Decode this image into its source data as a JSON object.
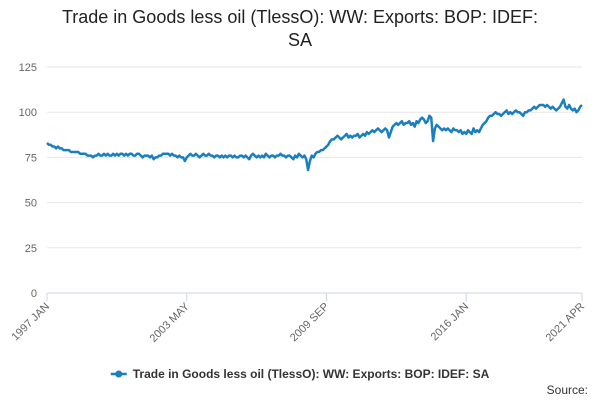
{
  "chart_data": {
    "type": "line",
    "title": "Trade in Goods less oil (TlessO): WW: Exports: BOP: IDEF: SA",
    "source_label": "Source:",
    "categories": [
      "1997 JAN",
      null,
      null,
      null,
      null,
      null,
      null,
      null,
      null,
      null,
      null,
      null,
      null,
      null,
      null,
      null,
      null,
      null,
      null,
      null,
      null,
      null,
      null,
      null,
      null,
      null,
      null,
      null,
      null,
      null,
      null,
      null,
      null,
      null,
      null,
      null,
      null,
      null,
      null,
      null,
      null,
      null,
      null,
      null,
      null,
      null,
      null,
      null,
      null,
      null,
      null,
      null,
      null,
      null,
      null,
      null,
      null,
      null,
      null,
      null,
      null,
      null,
      null,
      null,
      null,
      null,
      null,
      null,
      null,
      null,
      null,
      null,
      null,
      null,
      null,
      null,
      "2003 MAY",
      null,
      null,
      null,
      null,
      null,
      null,
      null,
      null,
      null,
      null,
      null,
      null,
      null,
      null,
      null,
      null,
      null,
      null,
      null,
      null,
      null,
      null,
      null,
      null,
      null,
      null,
      null,
      null,
      null,
      null,
      null,
      null,
      null,
      null,
      null,
      null,
      null,
      null,
      null,
      null,
      null,
      null,
      null,
      null,
      null,
      null,
      null,
      null,
      null,
      null,
      null,
      null,
      null,
      null,
      null,
      null,
      null,
      null,
      null,
      null,
      null,
      null,
      null,
      null,
      null,
      null,
      null,
      null,
      null,
      null,
      null,
      null,
      null,
      null,
      null,
      "2009 SEP",
      null,
      null,
      null,
      null,
      null,
      null,
      null,
      null,
      null,
      null,
      null,
      null,
      null,
      null,
      null,
      null,
      null,
      null,
      null,
      null,
      null,
      null,
      null,
      null,
      null,
      null,
      null,
      null,
      null,
      null,
      null,
      null,
      null,
      null,
      null,
      null,
      null,
      null,
      null,
      null,
      null,
      null,
      null,
      null,
      null,
      null,
      null,
      null,
      null,
      null,
      null,
      null,
      null,
      null,
      null,
      null,
      null,
      null,
      null,
      null,
      null,
      null,
      null,
      null,
      null,
      null,
      null,
      null,
      null,
      null,
      null,
      null,
      null,
      null,
      null,
      "2016 JAN",
      null,
      null,
      null,
      null,
      null,
      null,
      null,
      null,
      null,
      null,
      null,
      null,
      null,
      null,
      null,
      null,
      null,
      null,
      null,
      null,
      null,
      null,
      null,
      null,
      null,
      null,
      null,
      null,
      null,
      null,
      null,
      null,
      null,
      null,
      null,
      null,
      null,
      null,
      null,
      null,
      null,
      null,
      null,
      null,
      null,
      null,
      null,
      null,
      null,
      null,
      null,
      null,
      null,
      null,
      null,
      null,
      null,
      null,
      null,
      null,
      null,
      null,
      "2021 APR"
    ],
    "series": [
      {
        "name": "Trade in Goods less oil (TlessO): WW: Exports: BOP: IDEF: SA",
        "color": "#1a7fc1",
        "values": [
          83,
          82,
          82,
          81,
          81,
          80,
          81,
          80,
          80,
          79,
          79,
          79,
          79,
          78,
          78,
          78,
          78,
          78,
          77,
          77,
          77,
          77,
          76,
          76,
          76,
          75,
          76,
          76,
          77,
          76,
          76,
          77,
          76,
          77,
          76,
          76,
          77,
          76,
          77,
          76,
          77,
          77,
          76,
          77,
          76,
          77,
          77,
          76,
          76,
          77,
          77,
          76,
          75,
          76,
          76,
          76,
          75,
          76,
          74,
          75,
          75,
          76,
          76,
          77,
          77,
          77,
          77,
          76,
          77,
          76,
          76,
          75,
          76,
          75,
          75,
          73,
          75,
          76,
          77,
          76,
          76,
          77,
          76,
          75,
          76,
          77,
          76,
          76,
          77,
          76,
          76,
          75,
          76,
          76,
          75,
          76,
          75,
          76,
          75,
          76,
          76,
          75,
          76,
          75,
          75,
          76,
          76,
          75,
          76,
          75,
          74,
          76,
          77,
          76,
          75,
          76,
          75,
          76,
          75,
          77,
          76,
          75,
          76,
          76,
          75,
          76,
          76,
          77,
          76,
          76,
          75,
          76,
          76,
          75,
          74,
          76,
          75,
          77,
          76,
          75,
          76,
          74,
          68,
          73,
          76,
          75,
          77,
          78,
          78,
          79,
          79,
          80,
          81,
          82,
          84,
          85,
          85,
          86,
          87,
          86,
          85,
          86,
          87,
          88,
          86,
          87,
          86,
          87,
          87,
          88,
          86,
          87,
          88,
          87,
          89,
          88,
          89,
          90,
          89,
          90,
          91,
          90,
          89,
          90,
          91,
          90,
          86,
          89,
          92,
          93,
          94,
          93,
          94,
          95,
          93,
          94,
          94,
          95,
          93,
          94,
          92,
          95,
          94,
          96,
          97,
          96,
          94,
          95,
          98,
          97,
          84,
          91,
          93,
          92,
          91,
          90,
          91,
          90,
          91,
          90,
          89,
          91,
          90,
          90,
          89,
          90,
          88,
          89,
          88,
          90,
          89,
          88,
          91,
          89,
          90,
          89,
          91,
          93,
          94,
          95,
          97,
          98,
          98,
          99,
          100,
          99,
          99,
          98,
          99,
          100,
          101,
          99,
          100,
          99,
          100,
          101,
          100,
          100,
          99,
          98,
          100,
          100,
          101,
          101,
          102,
          103,
          102,
          103,
          104,
          104,
          104,
          103,
          104,
          103,
          102,
          103,
          102,
          101,
          102,
          103,
          105,
          107,
          103,
          102,
          104,
          102,
          101,
          102,
          100,
          101,
          103,
          104
        ]
      }
    ],
    "ylim": [
      0,
      125
    ],
    "yticks": [
      0,
      25,
      50,
      75,
      100,
      125
    ],
    "grid": true,
    "legend": "bottom"
  }
}
